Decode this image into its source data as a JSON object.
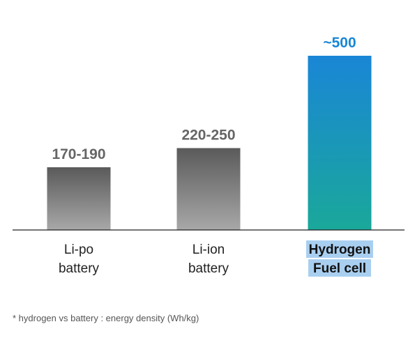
{
  "chart_data": {
    "type": "bar",
    "categories": [
      [
        "Li-po",
        "battery"
      ],
      [
        "Li-ion",
        "battery"
      ],
      [
        "Hydrogen",
        "Fuel cell"
      ]
    ],
    "values": [
      180,
      235,
      500
    ],
    "value_labels": [
      "170-190",
      "220-250",
      "~500"
    ],
    "highlight_index": 2,
    "ylim": [
      0,
      500
    ],
    "grid": false,
    "title": "",
    "xlabel": "",
    "ylabel": ""
  },
  "colors": {
    "gray_top": "#5a5a5a",
    "gray_bottom": "#a8a8a8",
    "gray_label": "#666666",
    "highlight_top": "#1a86d6",
    "highlight_bottom": "#1aa89a",
    "highlight_label": "#1a86d6",
    "highlight_bg": "#a9cff0",
    "axis": "#222222"
  },
  "footnote": "* hydrogen vs battery : energy density (Wh/kg)"
}
